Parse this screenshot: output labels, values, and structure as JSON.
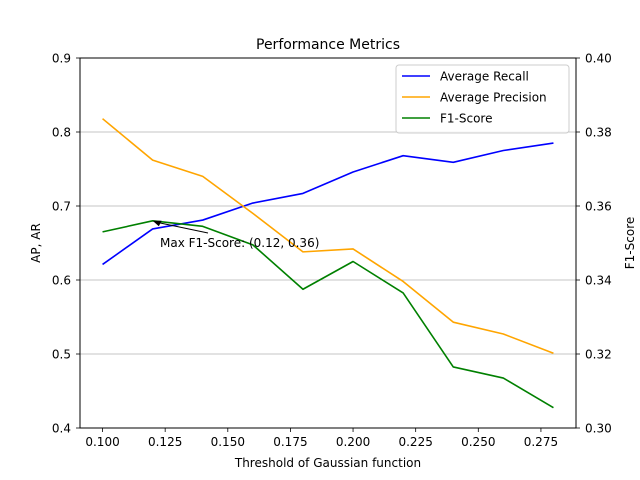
{
  "chart_data": {
    "type": "line",
    "title": "Performance Metrics",
    "xlabel": "Threshold of Gaussian function",
    "ylabel_left": "AP, AR",
    "ylabel_right": "F1-Score",
    "xlim": [
      0.091,
      0.289
    ],
    "ylim_left": [
      0.4,
      0.9
    ],
    "ylim_right": [
      0.3,
      0.4
    ],
    "x_ticks": [
      "0.100",
      "0.125",
      "0.150",
      "0.175",
      "0.200",
      "0.225",
      "0.250",
      "0.275"
    ],
    "x_tick_values": [
      0.1,
      0.125,
      0.15,
      0.175,
      0.2,
      0.225,
      0.25,
      0.275
    ],
    "y_ticks_left": [
      "0.4",
      "0.5",
      "0.6",
      "0.7",
      "0.8",
      "0.9"
    ],
    "y_tick_values_left": [
      0.4,
      0.5,
      0.6,
      0.7,
      0.8,
      0.9
    ],
    "y_ticks_right": [
      "0.30",
      "0.32",
      "0.34",
      "0.36",
      "0.38",
      "0.40"
    ],
    "y_tick_values_right": [
      0.3,
      0.32,
      0.34,
      0.36,
      0.38,
      0.4
    ],
    "grid": "horizontal (left axis)",
    "legend_position": "top-right",
    "x": [
      0.1,
      0.12,
      0.14,
      0.16,
      0.18,
      0.2,
      0.22,
      0.24,
      0.26,
      0.28
    ],
    "series": [
      {
        "name": "Average Recall",
        "axis": "left",
        "color": "#0000ff",
        "values": [
          0.621,
          0.669,
          0.681,
          0.704,
          0.717,
          0.746,
          0.768,
          0.759,
          0.775,
          0.785
        ]
      },
      {
        "name": "Average Precision",
        "axis": "left",
        "color": "#ffa500",
        "values": [
          0.818,
          0.762,
          0.74,
          0.69,
          0.638,
          0.642,
          0.598,
          0.543,
          0.527,
          0.501
        ]
      },
      {
        "name": "F1-Score",
        "axis": "right",
        "color": "#008000",
        "values": [
          0.353,
          0.356,
          0.3545,
          0.3495,
          0.3375,
          0.345,
          0.3365,
          0.3165,
          0.3135,
          0.3055
        ]
      }
    ],
    "annotation": {
      "text": "Max F1-Score: (0.12, 0.36)",
      "x": 0.12,
      "y": 0.356,
      "axis": "right"
    }
  }
}
